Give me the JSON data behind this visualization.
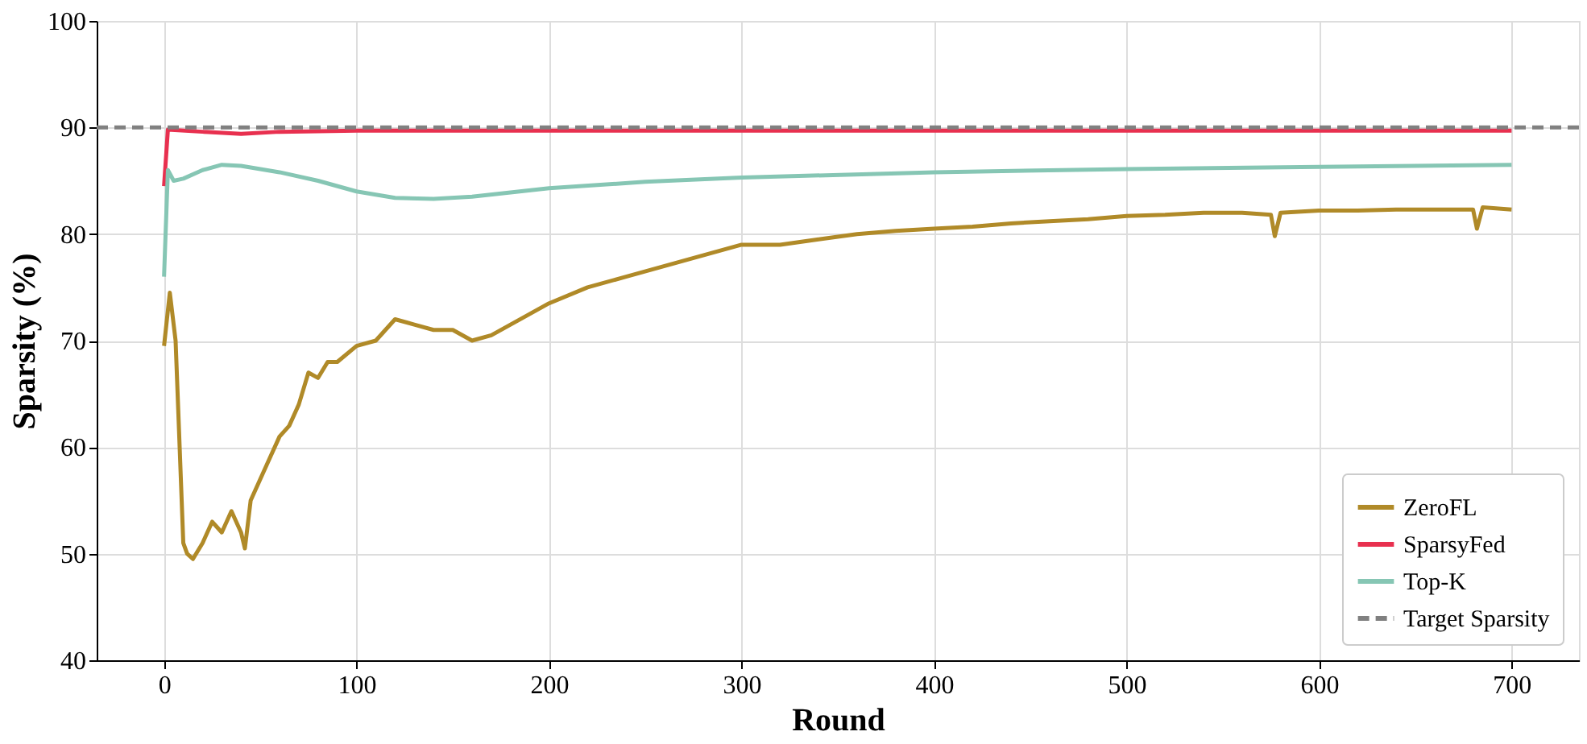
{
  "chart_data": {
    "type": "line",
    "xlabel": "Round",
    "ylabel": "Sparsity (%)",
    "xlim": [
      -35,
      735
    ],
    "xticks": [
      0,
      100,
      200,
      300,
      400,
      500,
      600,
      700
    ],
    "ylim": [
      40,
      100
    ],
    "yticks": [
      40,
      50,
      60,
      70,
      80,
      90,
      100
    ],
    "grid": true,
    "legend": "bottom right",
    "line_style": "solid",
    "marker": "none",
    "series": [
      {
        "name": "ZeroFL",
        "color": "#b08a28",
        "x": [
          0,
          3,
          6,
          10,
          12,
          15,
          20,
          25,
          30,
          35,
          40,
          42,
          45,
          50,
          55,
          60,
          65,
          70,
          75,
          80,
          85,
          90,
          100,
          110,
          120,
          130,
          140,
          150,
          160,
          170,
          180,
          190,
          200,
          220,
          240,
          260,
          280,
          300,
          320,
          340,
          360,
          380,
          400,
          420,
          440,
          460,
          480,
          500,
          520,
          540,
          560,
          575,
          577,
          580,
          600,
          620,
          640,
          660,
          680,
          682,
          685,
          700
        ],
        "values": [
          69.5,
          74.5,
          70,
          51,
          50,
          49.5,
          51,
          53,
          52,
          54,
          52,
          50.5,
          55,
          57,
          59,
          61,
          62,
          64,
          67,
          66.5,
          68,
          68,
          69.5,
          70,
          72,
          71.5,
          71,
          71,
          70,
          70.5,
          71.5,
          72.5,
          73.5,
          75,
          76,
          77,
          78,
          79,
          79,
          79.5,
          80,
          80.3,
          80.5,
          80.7,
          81,
          81.2,
          81.4,
          81.7,
          81.8,
          82,
          82,
          81.8,
          79.8,
          82,
          82.2,
          82.2,
          82.3,
          82.3,
          82.3,
          80.5,
          82.5,
          82.3
        ]
      },
      {
        "name": "SparsyFed",
        "color": "#e8304f",
        "x": [
          0,
          2,
          20,
          40,
          60,
          100,
          700
        ],
        "values": [
          84.5,
          89.8,
          89.6,
          89.4,
          89.6,
          89.7,
          89.7
        ]
      },
      {
        "name": "Top-K",
        "color": "#86c6b4",
        "x": [
          0,
          2,
          5,
          10,
          20,
          30,
          40,
          60,
          80,
          100,
          120,
          140,
          160,
          180,
          200,
          250,
          300,
          400,
          500,
          600,
          700
        ],
        "values": [
          76,
          86,
          85,
          85.2,
          86,
          86.5,
          86.4,
          85.8,
          85,
          84,
          83.4,
          83.3,
          83.5,
          83.9,
          84.3,
          84.9,
          85.3,
          85.8,
          86.1,
          86.3,
          86.5
        ]
      }
    ],
    "ref_lines": [
      {
        "axis": "y",
        "value": 90,
        "label": "Target Sparsity",
        "color": "#808080",
        "line_style": "dashed"
      }
    ]
  }
}
